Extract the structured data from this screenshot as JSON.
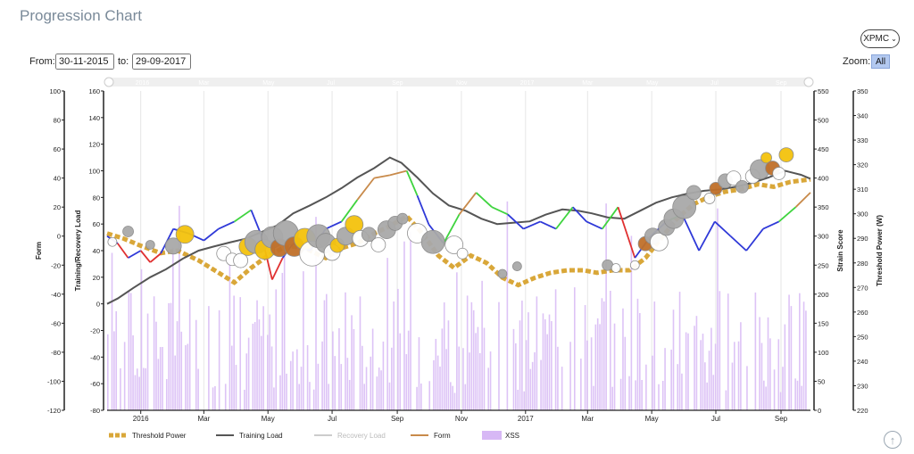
{
  "page": {
    "title": "Progression Chart",
    "model_button": "XPMC",
    "from_label": "From:",
    "from_value": "30-11-2015",
    "to_label": "to:",
    "to_value": "29-09-2017",
    "zoom_label": "Zoom:",
    "zoom_all": "All",
    "scroll_top_icon": "arrow-up-icon"
  },
  "chart_data": {
    "type": "line",
    "xaxis": {
      "start": "2015-11-30",
      "end": "2017-09-29",
      "ticks": [
        {
          "date": "2016-01-01",
          "label": "2016"
        },
        {
          "date": "2016-03-01",
          "label": "Mar"
        },
        {
          "date": "2016-05-01",
          "label": "May"
        },
        {
          "date": "2016-07-01",
          "label": "Jul"
        },
        {
          "date": "2016-09-01",
          "label": "Sep"
        },
        {
          "date": "2016-11-01",
          "label": "Nov"
        },
        {
          "date": "2017-01-01",
          "label": "2017"
        },
        {
          "date": "2017-03-01",
          "label": "Mar"
        },
        {
          "date": "2017-05-01",
          "label": "May"
        },
        {
          "date": "2017-07-01",
          "label": "Jul"
        },
        {
          "date": "2017-09-01",
          "label": "Sep"
        }
      ]
    },
    "axes": {
      "form": {
        "label": "Form",
        "min": -120,
        "max": 100,
        "ticks": [
          100,
          80,
          60,
          40,
          20,
          0,
          -20,
          -40,
          -60,
          -80,
          -100,
          -120
        ]
      },
      "load": {
        "label": "Training/Recovery Load",
        "min": -80,
        "max": 160,
        "ticks": [
          160,
          140,
          120,
          100,
          80,
          60,
          40,
          20,
          0,
          -20,
          -40,
          -60,
          -80
        ]
      },
      "strain": {
        "label": "Strain Score",
        "min": 0,
        "max": 550,
        "ticks": [
          550,
          500,
          450,
          400,
          350,
          300,
          250,
          200,
          150,
          100,
          50,
          0
        ]
      },
      "threshold": {
        "label": "Threshold Power (W)",
        "min": 220,
        "max": 350,
        "ticks": [
          350,
          340,
          330,
          320,
          310,
          300,
          290,
          280,
          270,
          260,
          250,
          240,
          230,
          220
        ]
      }
    },
    "legend": [
      "Threshold Power",
      "Training Load",
      "Recovery Load",
      "Form",
      "XSS"
    ],
    "colors": {
      "threshold": "#d9a739",
      "training": "#555555",
      "recovery": "#cccccc",
      "form_neg": "#e03030",
      "form_low": "#2f39d8",
      "form_mid": "#3fd43f",
      "form_high": "#c88a4a",
      "xss": "#d7b8f5",
      "bubble_gray": "#a9a9a9",
      "bubble_gold": "#f4c20d",
      "bubble_orange": "#c0702a",
      "bubble_white": "#ffffff"
    },
    "threshold_power": [
      [
        "2015-11-30",
        292
      ],
      [
        "2015-12-15",
        290
      ],
      [
        "2016-01-01",
        287
      ],
      [
        "2016-01-20",
        284
      ],
      [
        "2016-02-05",
        285
      ],
      [
        "2016-02-25",
        281
      ],
      [
        "2016-03-15",
        276
      ],
      [
        "2016-03-30",
        272
      ],
      [
        "2016-04-15",
        278
      ],
      [
        "2016-05-01",
        283
      ],
      [
        "2016-05-20",
        287
      ],
      [
        "2016-06-05",
        286
      ],
      [
        "2016-06-25",
        282
      ],
      [
        "2016-07-10",
        286
      ],
      [
        "2016-07-25",
        288
      ],
      [
        "2016-08-10",
        292
      ],
      [
        "2016-08-25",
        295
      ],
      [
        "2016-09-10",
        299
      ],
      [
        "2016-09-25",
        292
      ],
      [
        "2016-10-10",
        283
      ],
      [
        "2016-10-25",
        278
      ],
      [
        "2016-11-10",
        283
      ],
      [
        "2016-11-25",
        280
      ],
      [
        "2016-12-10",
        274
      ],
      [
        "2016-12-25",
        271
      ],
      [
        "2017-01-10",
        274
      ],
      [
        "2017-01-25",
        276
      ],
      [
        "2017-02-10",
        277
      ],
      [
        "2017-02-25",
        277
      ],
      [
        "2017-03-10",
        276
      ],
      [
        "2017-03-25",
        277
      ],
      [
        "2017-04-10",
        277
      ],
      [
        "2017-04-25",
        282
      ],
      [
        "2017-05-10",
        290
      ],
      [
        "2017-05-25",
        298
      ],
      [
        "2017-06-10",
        304
      ],
      [
        "2017-06-25",
        307
      ],
      [
        "2017-07-10",
        309
      ],
      [
        "2017-07-25",
        310
      ],
      [
        "2017-08-10",
        312
      ],
      [
        "2017-08-25",
        311
      ],
      [
        "2017-09-10",
        313
      ],
      [
        "2017-09-29",
        314
      ]
    ],
    "training_load": [
      [
        "2015-11-30",
        0
      ],
      [
        "2015-12-10",
        4
      ],
      [
        "2015-12-25",
        12
      ],
      [
        "2016-01-10",
        20
      ],
      [
        "2016-01-25",
        26
      ],
      [
        "2016-02-10",
        34
      ],
      [
        "2016-02-25",
        40
      ],
      [
        "2016-03-10",
        43
      ],
      [
        "2016-03-25",
        46
      ],
      [
        "2016-04-10",
        49
      ],
      [
        "2016-04-25",
        54
      ],
      [
        "2016-05-10",
        59
      ],
      [
        "2016-05-25",
        68
      ],
      [
        "2016-06-10",
        74
      ],
      [
        "2016-06-25",
        80
      ],
      [
        "2016-07-10",
        87
      ],
      [
        "2016-07-25",
        95
      ],
      [
        "2016-08-10",
        102
      ],
      [
        "2016-08-25",
        110
      ],
      [
        "2016-09-05",
        106
      ],
      [
        "2016-09-20",
        95
      ],
      [
        "2016-10-05",
        83
      ],
      [
        "2016-10-20",
        74
      ],
      [
        "2016-11-05",
        70
      ],
      [
        "2016-11-20",
        64
      ],
      [
        "2016-12-05",
        60
      ],
      [
        "2016-12-20",
        61
      ],
      [
        "2017-01-05",
        62
      ],
      [
        "2017-01-20",
        67
      ],
      [
        "2017-02-05",
        71
      ],
      [
        "2017-02-20",
        70
      ],
      [
        "2017-03-05",
        68
      ],
      [
        "2017-03-20",
        65
      ],
      [
        "2017-04-05",
        64
      ],
      [
        "2017-04-20",
        70
      ],
      [
        "2017-05-05",
        76
      ],
      [
        "2017-05-20",
        80
      ],
      [
        "2017-06-05",
        83
      ],
      [
        "2017-06-20",
        85
      ],
      [
        "2017-07-05",
        86
      ],
      [
        "2017-07-20",
        88
      ],
      [
        "2017-08-05",
        91
      ],
      [
        "2017-08-20",
        95
      ],
      [
        "2017-09-05",
        100
      ],
      [
        "2017-09-20",
        97
      ],
      [
        "2017-09-29",
        94
      ]
    ],
    "form": [
      [
        "2015-11-30",
        0
      ],
      [
        "2015-12-10",
        -5
      ],
      [
        "2015-12-20",
        -15
      ],
      [
        "2016-01-01",
        -10
      ],
      [
        "2016-01-10",
        -18
      ],
      [
        "2016-01-20",
        -12
      ],
      [
        "2016-02-01",
        5
      ],
      [
        "2016-02-15",
        2
      ],
      [
        "2016-03-01",
        -3
      ],
      [
        "2016-03-15",
        5
      ],
      [
        "2016-03-30",
        10
      ],
      [
        "2016-04-15",
        18
      ],
      [
        "2016-04-25",
        0
      ],
      [
        "2016-05-05",
        -30
      ],
      [
        "2016-05-15",
        -15
      ],
      [
        "2016-05-25",
        -5
      ],
      [
        "2016-06-10",
        -10
      ],
      [
        "2016-06-25",
        5
      ],
      [
        "2016-07-10",
        10
      ],
      [
        "2016-07-25",
        25
      ],
      [
        "2016-08-10",
        40
      ],
      [
        "2016-08-25",
        42
      ],
      [
        "2016-09-10",
        45
      ],
      [
        "2016-09-20",
        28
      ],
      [
        "2016-10-01",
        8
      ],
      [
        "2016-10-15",
        -5
      ],
      [
        "2016-10-30",
        15
      ],
      [
        "2016-11-15",
        30
      ],
      [
        "2016-11-30",
        20
      ],
      [
        "2016-12-15",
        15
      ],
      [
        "2016-12-30",
        5
      ],
      [
        "2017-01-15",
        10
      ],
      [
        "2017-01-30",
        5
      ],
      [
        "2017-02-15",
        20
      ],
      [
        "2017-02-28",
        10
      ],
      [
        "2017-03-15",
        5
      ],
      [
        "2017-03-30",
        20
      ],
      [
        "2017-04-15",
        -15
      ],
      [
        "2017-04-30",
        0
      ],
      [
        "2017-05-15",
        10
      ],
      [
        "2017-05-30",
        15
      ],
      [
        "2017-06-15",
        -10
      ],
      [
        "2017-06-30",
        10
      ],
      [
        "2017-07-15",
        0
      ],
      [
        "2017-07-30",
        -10
      ],
      [
        "2017-08-15",
        5
      ],
      [
        "2017-08-30",
        10
      ],
      [
        "2017-09-15",
        20
      ],
      [
        "2017-09-29",
        30
      ]
    ],
    "xss_bubbles": [
      {
        "date": "2015-12-05",
        "value": 290,
        "size": 5,
        "color": "white"
      },
      {
        "date": "2015-12-20",
        "value": 308,
        "size": 6,
        "color": "gray"
      },
      {
        "date": "2016-01-10",
        "value": 285,
        "size": 5,
        "color": "gray"
      },
      {
        "date": "2016-02-01",
        "value": 283,
        "size": 9,
        "color": "gray"
      },
      {
        "date": "2016-02-12",
        "value": 303,
        "size": 10,
        "color": "gold"
      },
      {
        "date": "2016-03-20",
        "value": 270,
        "size": 8,
        "color": "white"
      },
      {
        "date": "2016-03-28",
        "value": 260,
        "size": 7,
        "color": "white"
      },
      {
        "date": "2016-04-05",
        "value": 258,
        "size": 8,
        "color": "white"
      },
      {
        "date": "2016-04-12",
        "value": 282,
        "size": 10,
        "color": "gold"
      },
      {
        "date": "2016-04-20",
        "value": 290,
        "size": 13,
        "color": "gray"
      },
      {
        "date": "2016-04-28",
        "value": 277,
        "size": 11,
        "color": "gold"
      },
      {
        "date": "2016-05-05",
        "value": 298,
        "size": 12,
        "color": "gray"
      },
      {
        "date": "2016-05-12",
        "value": 280,
        "size": 10,
        "color": "orange"
      },
      {
        "date": "2016-05-18",
        "value": 305,
        "size": 14,
        "color": "gray"
      },
      {
        "date": "2016-05-26",
        "value": 282,
        "size": 11,
        "color": "orange"
      },
      {
        "date": "2016-06-05",
        "value": 295,
        "size": 12,
        "color": "gold"
      },
      {
        "date": "2016-06-12",
        "value": 270,
        "size": 14,
        "color": "white"
      },
      {
        "date": "2016-06-18",
        "value": 300,
        "size": 13,
        "color": "gray"
      },
      {
        "date": "2016-06-25",
        "value": 288,
        "size": 11,
        "color": "gray"
      },
      {
        "date": "2016-07-01",
        "value": 272,
        "size": 9,
        "color": "white"
      },
      {
        "date": "2016-07-06",
        "value": 284,
        "size": 8,
        "color": "gold"
      },
      {
        "date": "2016-07-14",
        "value": 300,
        "size": 10,
        "color": "gray"
      },
      {
        "date": "2016-07-22",
        "value": 320,
        "size": 10,
        "color": "gold"
      },
      {
        "date": "2016-07-28",
        "value": 296,
        "size": 9,
        "color": "white"
      },
      {
        "date": "2016-08-05",
        "value": 303,
        "size": 8,
        "color": "gray"
      },
      {
        "date": "2016-08-14",
        "value": 285,
        "size": 8,
        "color": "white"
      },
      {
        "date": "2016-08-22",
        "value": 311,
        "size": 10,
        "color": "gray"
      },
      {
        "date": "2016-08-30",
        "value": 322,
        "size": 8,
        "color": "gray"
      },
      {
        "date": "2016-09-06",
        "value": 330,
        "size": 6,
        "color": "gray"
      },
      {
        "date": "2016-09-20",
        "value": 305,
        "size": 11,
        "color": "white"
      },
      {
        "date": "2016-10-05",
        "value": 290,
        "size": 13,
        "color": "gray"
      },
      {
        "date": "2016-10-25",
        "value": 285,
        "size": 10,
        "color": "white"
      },
      {
        "date": "2016-11-02",
        "value": 270,
        "size": 6,
        "color": "white"
      },
      {
        "date": "2016-12-10",
        "value": 235,
        "size": 5,
        "color": "gray"
      },
      {
        "date": "2016-12-24",
        "value": 248,
        "size": 5,
        "color": "gray"
      },
      {
        "date": "2017-03-20",
        "value": 250,
        "size": 6,
        "color": "gray"
      },
      {
        "date": "2017-03-28",
        "value": 245,
        "size": 5,
        "color": "white"
      },
      {
        "date": "2017-04-15",
        "value": 250,
        "size": 5,
        "color": "white"
      },
      {
        "date": "2017-04-25",
        "value": 287,
        "size": 8,
        "color": "orange"
      },
      {
        "date": "2017-05-02",
        "value": 300,
        "size": 9,
        "color": "gray"
      },
      {
        "date": "2017-05-08",
        "value": 290,
        "size": 10,
        "color": "white"
      },
      {
        "date": "2017-05-15",
        "value": 315,
        "size": 9,
        "color": "gray"
      },
      {
        "date": "2017-05-22",
        "value": 330,
        "size": 11,
        "color": "gray"
      },
      {
        "date": "2017-06-01",
        "value": 350,
        "size": 13,
        "color": "gray"
      },
      {
        "date": "2017-06-10",
        "value": 375,
        "size": 8,
        "color": "gray"
      },
      {
        "date": "2017-06-25",
        "value": 365,
        "size": 6,
        "color": "white"
      },
      {
        "date": "2017-07-01",
        "value": 382,
        "size": 7,
        "color": "orange"
      },
      {
        "date": "2017-07-10",
        "value": 395,
        "size": 8,
        "color": "gray"
      },
      {
        "date": "2017-07-18",
        "value": 400,
        "size": 8,
        "color": "white"
      },
      {
        "date": "2017-07-26",
        "value": 385,
        "size": 7,
        "color": "gray"
      },
      {
        "date": "2017-08-05",
        "value": 403,
        "size": 8,
        "color": "white"
      },
      {
        "date": "2017-08-12",
        "value": 415,
        "size": 11,
        "color": "gray"
      },
      {
        "date": "2017-08-18",
        "value": 435,
        "size": 6,
        "color": "gold"
      },
      {
        "date": "2017-08-24",
        "value": 417,
        "size": 8,
        "color": "orange"
      },
      {
        "date": "2017-08-30",
        "value": 408,
        "size": 7,
        "color": "white"
      },
      {
        "date": "2017-09-06",
        "value": 440,
        "size": 8,
        "color": "gold"
      }
    ]
  }
}
